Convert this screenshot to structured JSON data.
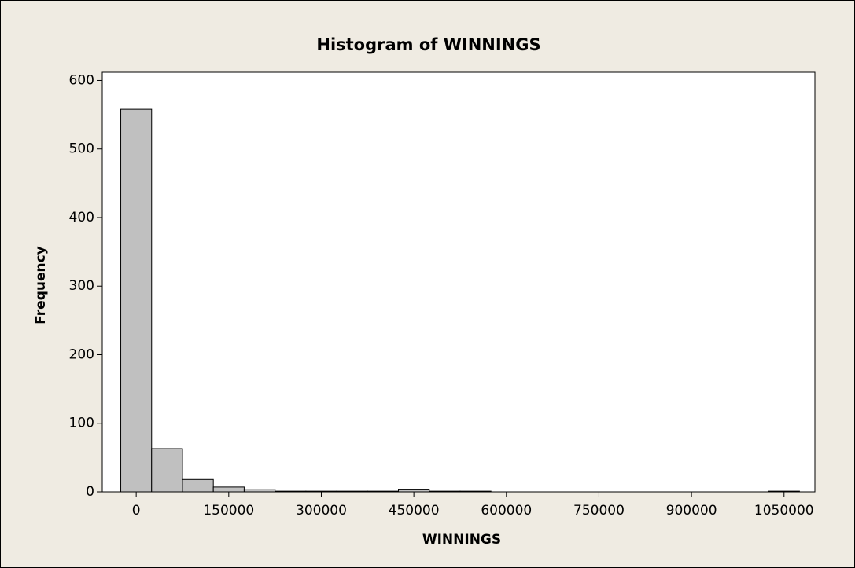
{
  "chart_data": {
    "type": "histogram",
    "title": "Histogram of WINNINGS",
    "xlabel": "WINNINGS",
    "ylabel": "Frequency",
    "bins": [
      -25000,
      25000,
      75000,
      125000,
      175000,
      225000,
      275000,
      325000,
      375000,
      425000,
      475000,
      525000,
      575000,
      625000,
      675000,
      725000,
      775000,
      825000,
      875000,
      925000,
      975000,
      1025000,
      1075000
    ],
    "values": [
      558,
      63,
      18,
      7,
      4,
      1,
      1,
      1,
      1,
      3,
      1,
      1,
      0,
      0,
      0,
      0,
      0,
      0,
      0,
      0,
      0,
      1
    ],
    "color": "#c0c0c0",
    "xlim": [
      -55000,
      1100000
    ],
    "ylim": [
      0,
      612
    ],
    "xticks": [
      0,
      150000,
      300000,
      450000,
      600000,
      750000,
      900000,
      1050000
    ],
    "yticks": [
      0,
      100,
      200,
      300,
      400,
      500,
      600
    ]
  }
}
